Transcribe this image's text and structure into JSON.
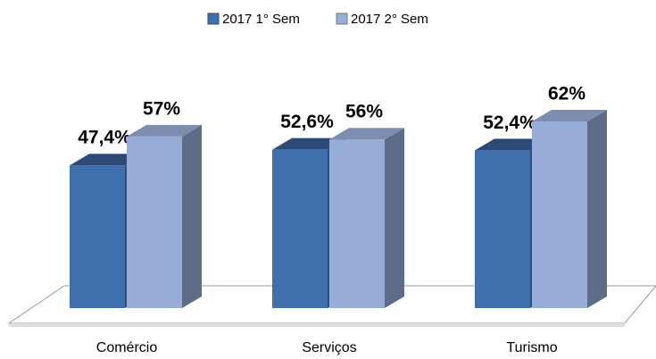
{
  "chart_data": {
    "type": "bar3d",
    "categories": [
      "Comércio",
      "Serviços",
      "Turismo"
    ],
    "series": [
      {
        "name": "2017 1° Sem",
        "color": "#3f6fad",
        "values": [
          47.4,
          52.6,
          52.4
        ],
        "value_labels": [
          "47,4%",
          "52,6%",
          "52,4%"
        ]
      },
      {
        "name": "2017 2° Sem",
        "color": "#97acd6",
        "values": [
          57,
          56,
          62
        ],
        "value_labels": [
          "57%",
          "56%",
          "62%"
        ]
      }
    ],
    "ylim": [
      0,
      70
    ],
    "legend": "top"
  }
}
